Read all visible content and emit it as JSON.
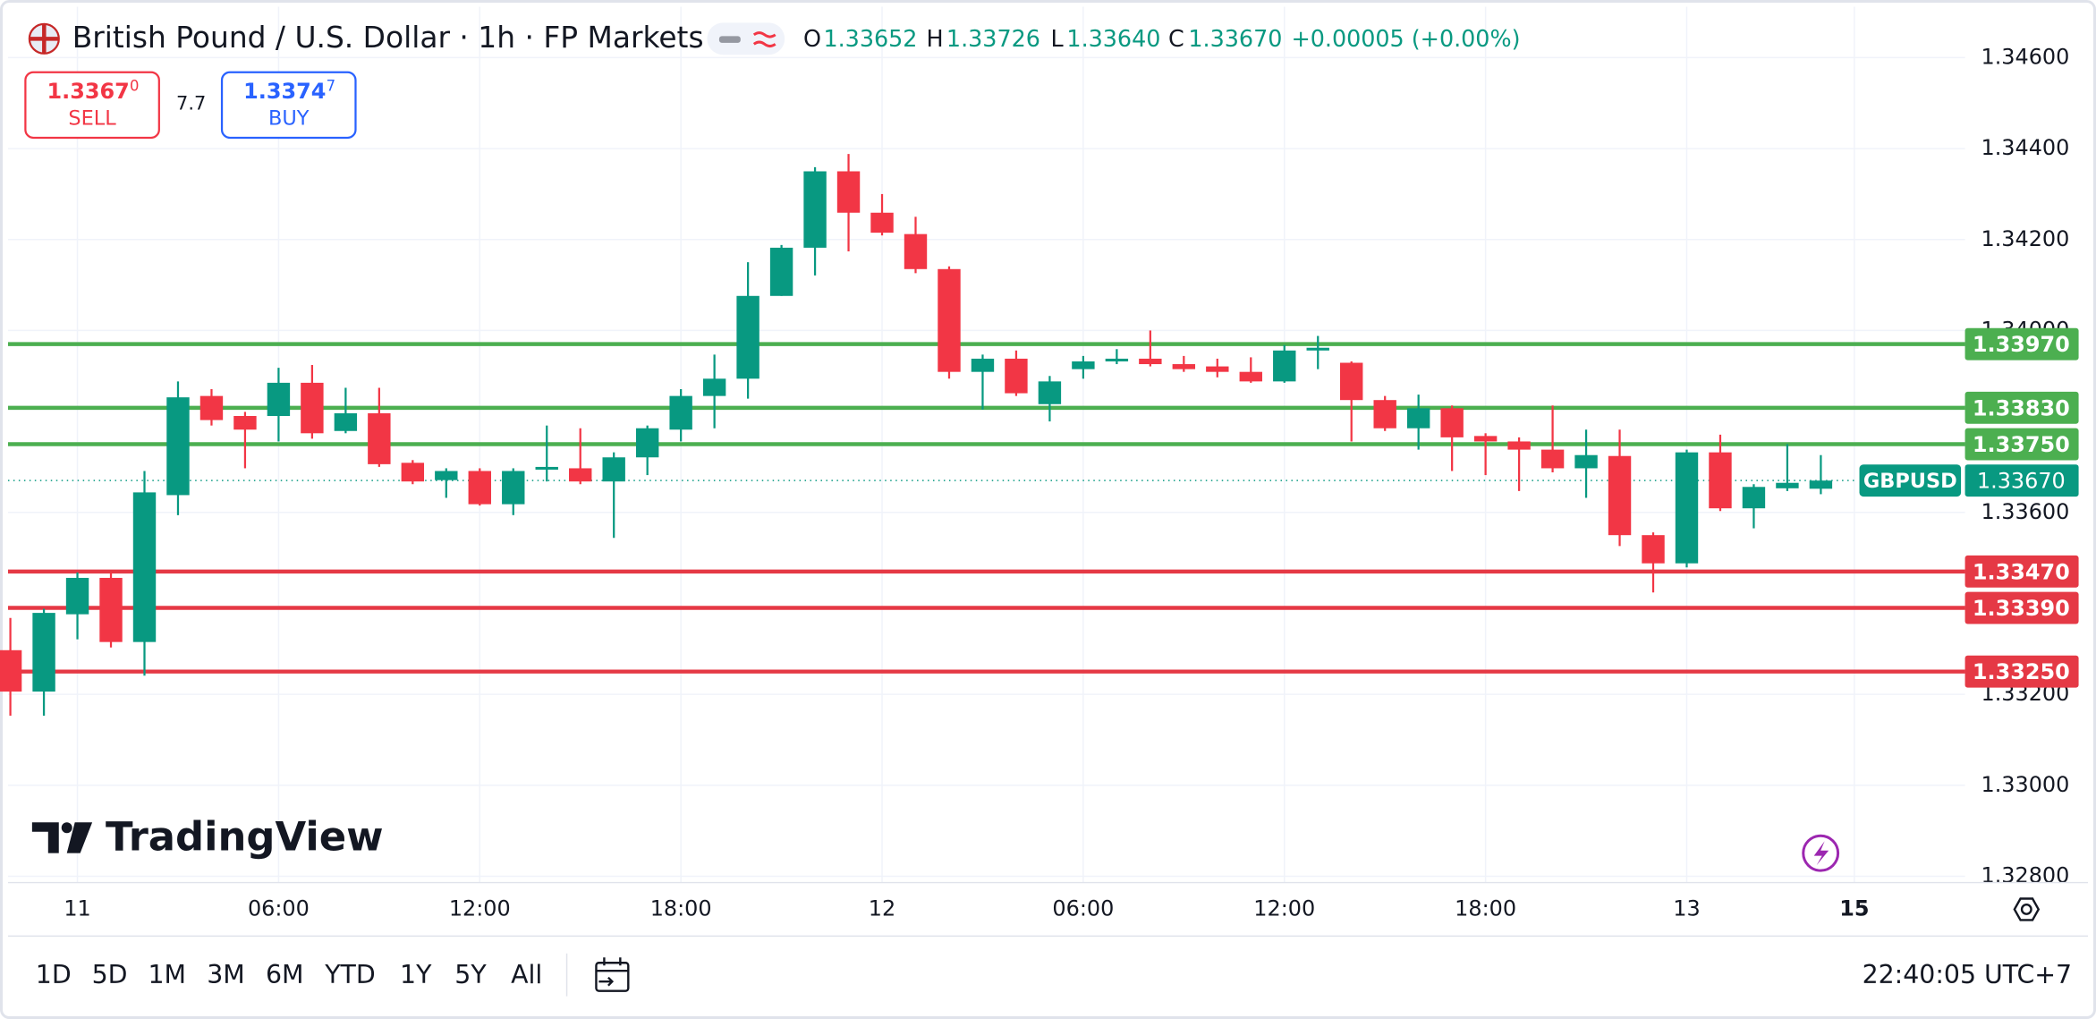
{
  "chart_data": {
    "type": "candlestick",
    "up_color": "#089981",
    "down_color": "#f23645",
    "grid": true,
    "x": [
      -2,
      -1,
      0,
      1,
      2,
      3,
      4,
      5,
      6,
      7,
      8,
      9,
      10,
      11,
      12,
      13,
      14,
      15,
      16,
      17,
      18,
      19,
      20,
      21,
      22,
      23,
      24,
      25,
      26,
      27,
      28,
      29,
      30,
      31,
      32,
      33,
      34,
      35,
      36,
      37,
      38,
      39,
      40,
      41,
      42,
      43,
      44,
      45,
      46,
      47,
      48,
      49,
      50,
      51,
      52
    ],
    "open": [
      1.33297,
      1.33206,
      1.33376,
      1.33456,
      1.33315,
      1.33638,
      1.33856,
      1.33812,
      1.33812,
      1.33885,
      1.33779,
      1.33818,
      1.33709,
      1.33671,
      1.33691,
      1.33618,
      1.33694,
      1.33697,
      1.33668,
      1.33721,
      1.33782,
      1.33856,
      1.33894,
      1.34076,
      1.34182,
      1.3435,
      1.34259,
      1.34212,
      1.34135,
      1.33909,
      1.33938,
      1.33838,
      1.33915,
      1.33932,
      1.33938,
      1.33926,
      1.33921,
      1.33909,
      1.33888,
      1.33956,
      1.33929,
      1.33847,
      1.33785,
      1.33829,
      1.33768,
      1.33756,
      1.33738,
      1.33697,
      1.33724,
      1.3355,
      1.33488,
      1.33732,
      1.33609,
      1.33653,
      1.33652
    ],
    "high": [
      1.33368,
      1.33388,
      1.33468,
      1.33468,
      1.33691,
      1.33888,
      1.33871,
      1.33821,
      1.33918,
      1.33924,
      1.33874,
      1.33874,
      1.33715,
      1.33697,
      1.33697,
      1.33697,
      1.33791,
      1.33785,
      1.33732,
      1.33791,
      1.33871,
      1.33947,
      1.3415,
      1.34188,
      1.34359,
      1.34388,
      1.343,
      1.3425,
      1.34141,
      1.33947,
      1.33956,
      1.339,
      1.33944,
      1.33959,
      1.34,
      1.33944,
      1.33938,
      1.33941,
      1.33968,
      1.33988,
      1.33932,
      1.33856,
      1.33859,
      1.33835,
      1.33774,
      1.33765,
      1.33835,
      1.33782,
      1.33782,
      1.33556,
      1.33738,
      1.33771,
      1.33662,
      1.3375,
      1.33726
    ],
    "low": [
      1.33153,
      1.33153,
      1.33321,
      1.33303,
      1.33241,
      1.33594,
      1.33791,
      1.33697,
      1.33756,
      1.33762,
      1.33774,
      1.337,
      1.33662,
      1.33632,
      1.33615,
      1.33594,
      1.33668,
      1.33662,
      1.33544,
      1.33682,
      1.33756,
      1.33785,
      1.3385,
      1.34076,
      1.34121,
      1.34174,
      1.34209,
      1.34126,
      1.33894,
      1.33826,
      1.33856,
      1.338,
      1.33894,
      1.33926,
      1.33921,
      1.33909,
      1.33897,
      1.33885,
      1.33885,
      1.33915,
      1.33756,
      1.33779,
      1.33738,
      1.33691,
      1.33682,
      1.33647,
      1.33688,
      1.33632,
      1.33526,
      1.33424,
      1.33479,
      1.33603,
      1.33565,
      1.33647,
      1.3364
    ],
    "close": [
      1.33206,
      1.33379,
      1.33456,
      1.33315,
      1.33644,
      1.33853,
      1.33803,
      1.33782,
      1.33885,
      1.33774,
      1.33818,
      1.33706,
      1.33668,
      1.33691,
      1.33618,
      1.33691,
      1.337,
      1.33668,
      1.33721,
      1.33785,
      1.33856,
      1.33894,
      1.34076,
      1.34182,
      1.3435,
      1.34259,
      1.34215,
      1.34135,
      1.33909,
      1.33938,
      1.33862,
      1.33888,
      1.33932,
      1.33938,
      1.33926,
      1.33915,
      1.33909,
      1.33888,
      1.33956,
      1.33962,
      1.33847,
      1.33785,
      1.33829,
      1.33765,
      1.33756,
      1.33738,
      1.33697,
      1.33726,
      1.3355,
      1.33488,
      1.33732,
      1.33609,
      1.33656,
      1.33665,
      1.3367
    ],
    "xlim": [
      -2.07,
      56.3
    ],
    "ylim": [
      1.32786,
      1.34712
    ],
    "xticks": [
      {
        "value": 0,
        "label": "11"
      },
      {
        "value": 6,
        "label": "06:00"
      },
      {
        "value": 12,
        "label": "12:00"
      },
      {
        "value": 18,
        "label": "18:00"
      },
      {
        "value": 24,
        "label": "12"
      },
      {
        "value": 30,
        "label": "06:00"
      },
      {
        "value": 36,
        "label": "12:00"
      },
      {
        "value": 42,
        "label": "18:00"
      },
      {
        "value": 48,
        "label": "13"
      },
      {
        "value": 53,
        "label": "15"
      }
    ],
    "yticks": [
      {
        "value": 1.346,
        "label": "1.34600"
      },
      {
        "value": 1.344,
        "label": "1.34400"
      },
      {
        "value": 1.342,
        "label": "1.34200"
      },
      {
        "value": 1.34,
        "label": "1.34000"
      },
      {
        "value": 1.336,
        "label": "1.33600"
      },
      {
        "value": 1.332,
        "label": "1.33200"
      },
      {
        "value": 1.33,
        "label": "1.33000"
      },
      {
        "value": 1.328,
        "label": "1.32800"
      }
    ],
    "levels": [
      {
        "value": 1.3397,
        "label": "1.33970",
        "color": "#4caf50"
      },
      {
        "value": 1.3383,
        "label": "1.33830",
        "color": "#4caf50"
      },
      {
        "value": 1.3375,
        "label": "1.33750",
        "color": "#4caf50"
      },
      {
        "value": 1.3347,
        "label": "1.33470",
        "color": "#e53945"
      },
      {
        "value": 1.3339,
        "label": "1.33390",
        "color": "#e53945"
      },
      {
        "value": 1.3325,
        "label": "1.33250",
        "color": "#e53945"
      }
    ],
    "last": {
      "name": "GBPUSD",
      "value": 1.3367,
      "label": "1.33670",
      "color": "#089981"
    }
  },
  "header": {
    "symbol": "British Pound / U.S. Dollar · 1h · FP Markets",
    "ohlc": [
      {
        "key": "O",
        "value": "1.33652"
      },
      {
        "key": "H",
        "value": "1.33726"
      },
      {
        "key": "L",
        "value": "1.33640"
      },
      {
        "key": "C",
        "value": "1.33670"
      }
    ],
    "change": "+0.00005 (+0.00%)",
    "sell": {
      "price": "1.3367",
      "price_sup": "0",
      "label": "SELL"
    },
    "spread": "7.7",
    "buy": {
      "price": "1.3374",
      "price_sup": "7",
      "label": "BUY"
    }
  },
  "logo": "TradingView",
  "toolbar": {
    "ranges": [
      "1D",
      "5D",
      "1M",
      "3M",
      "6M",
      "YTD",
      "1Y",
      "5Y",
      "All"
    ],
    "clock": "22:40:05 UTC+7"
  }
}
